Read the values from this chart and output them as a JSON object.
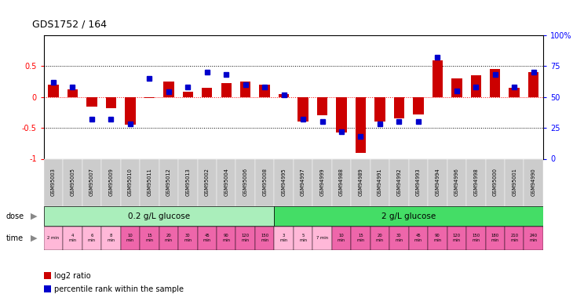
{
  "title": "GDS1752 / 164",
  "samples": [
    "GSM95003",
    "GSM95005",
    "GSM95007",
    "GSM95009",
    "GSM95010",
    "GSM95011",
    "GSM95012",
    "GSM95013",
    "GSM95002",
    "GSM95004",
    "GSM95006",
    "GSM95008",
    "GSM94995",
    "GSM94997",
    "GSM94999",
    "GSM94988",
    "GSM94989",
    "GSM94991",
    "GSM94992",
    "GSM94993",
    "GSM94994",
    "GSM94996",
    "GSM94998",
    "GSM95000",
    "GSM95001",
    "GSM94990"
  ],
  "log2_ratio": [
    0.2,
    0.12,
    -0.15,
    -0.18,
    -0.45,
    -0.02,
    0.25,
    0.08,
    0.15,
    0.22,
    0.25,
    0.2,
    0.05,
    -0.4,
    -0.3,
    -0.58,
    -0.9,
    -0.4,
    -0.35,
    -0.28,
    0.6,
    0.3,
    0.35,
    0.45,
    0.15,
    0.4
  ],
  "percentile": [
    62,
    58,
    32,
    32,
    28,
    65,
    54,
    58,
    70,
    68,
    60,
    58,
    52,
    32,
    30,
    22,
    18,
    28,
    30,
    30,
    82,
    55,
    58,
    68,
    58,
    70
  ],
  "dose_groups": [
    {
      "label": "0.2 g/L glucose",
      "start": 0,
      "end": 12,
      "color": "#AAEEBB"
    },
    {
      "label": "2 g/L glucose",
      "start": 12,
      "end": 26,
      "color": "#44DD66"
    }
  ],
  "time_labels": [
    "2 min",
    "4\nmin",
    "6\nmin",
    "8\nmin",
    "10\nmin",
    "15\nmin",
    "20\nmin",
    "30\nmin",
    "45\nmin",
    "90\nmin",
    "120\nmin",
    "150\nmin",
    "3\nmin",
    "5\nmin",
    "7 min",
    "10\nmin",
    "15\nmin",
    "20\nmin",
    "30\nmin",
    "45\nmin",
    "90\nmin",
    "120\nmin",
    "150\nmin",
    "180\nmin",
    "210\nmin",
    "240\nmin"
  ],
  "time_colors": [
    "#FFB8D8",
    "#FFB8D8",
    "#FFB8D8",
    "#FFB8D8",
    "#EE66AA",
    "#EE66AA",
    "#EE66AA",
    "#EE66AA",
    "#EE66AA",
    "#EE66AA",
    "#EE66AA",
    "#EE66AA",
    "#FFB8D8",
    "#FFB8D8",
    "#FFB8D8",
    "#EE66AA",
    "#EE66AA",
    "#EE66AA",
    "#EE66AA",
    "#EE66AA",
    "#EE66AA",
    "#EE66AA",
    "#EE66AA",
    "#EE66AA",
    "#EE66AA",
    "#EE66AA"
  ],
  "bar_color": "#CC0000",
  "dot_color": "#0000CC",
  "ylim": [
    -1,
    1
  ],
  "yticks_left": [
    -1,
    -0.5,
    0,
    0.5
  ],
  "ytick_labels_left": [
    "-1",
    "-0.5",
    "0",
    "0.5"
  ],
  "yticks_right": [
    0,
    25,
    50,
    75,
    100
  ],
  "ytick_labels_right": [
    "0",
    "25",
    "50",
    "75",
    "100%"
  ],
  "legend_items": [
    {
      "color": "#CC0000",
      "label": "log2 ratio"
    },
    {
      "color": "#0000CC",
      "label": "percentile rank within the sample"
    }
  ],
  "bg_color": "#FFFFFF",
  "sample_label_bg": "#CCCCCC",
  "dose_label_color": "#444444",
  "time_label_color": "#444444"
}
